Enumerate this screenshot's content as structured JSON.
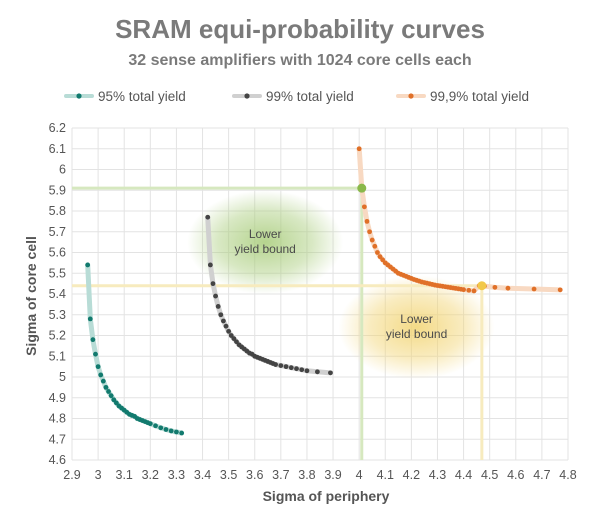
{
  "chart_data": {
    "type": "scatter",
    "title": "SRAM equi-probability curves",
    "subtitle": "32 sense amplifiers with 1024 core cells each",
    "xlabel": "Sigma of periphery",
    "ylabel": "Sigma of core cell",
    "xlim": [
      2.9,
      4.8
    ],
    "ylim": [
      4.6,
      6.2
    ],
    "x_ticks": [
      "2.9",
      "3",
      "3.1",
      "3.2",
      "3.3",
      "3.4",
      "3.5",
      "3.6",
      "3.7",
      "3.8",
      "3.9",
      "4",
      "4.1",
      "4.2",
      "4.3",
      "4.4",
      "4.5",
      "4.6",
      "4.7",
      "4.8"
    ],
    "y_ticks": [
      "4.6",
      "4.7",
      "4.8",
      "4.9",
      "5",
      "5.1",
      "5.2",
      "5.3",
      "5.4",
      "5.5",
      "5.6",
      "5.7",
      "5.8",
      "5.9",
      "6",
      "6.1",
      "6.2"
    ],
    "grid": true,
    "legend_position": "top",
    "series": [
      {
        "name": "95% total yield",
        "color": "#127a6e",
        "line_color": "#b8dcd6",
        "x": [
          2.96,
          2.97,
          2.98,
          2.99,
          3.0,
          3.01,
          3.02,
          3.03,
          3.04,
          3.05,
          3.06,
          3.07,
          3.08,
          3.09,
          3.1,
          3.11,
          3.12,
          3.13,
          3.14,
          3.15,
          3.16,
          3.17,
          3.18,
          3.19,
          3.2,
          3.22,
          3.24,
          3.26,
          3.28,
          3.3,
          3.32
        ],
        "y": [
          5.54,
          5.28,
          5.18,
          5.11,
          5.05,
          5.01,
          4.98,
          4.95,
          4.93,
          4.91,
          4.89,
          4.875,
          4.86,
          4.85,
          4.84,
          4.83,
          4.82,
          4.815,
          4.81,
          4.8,
          4.795,
          4.79,
          4.785,
          4.78,
          4.775,
          4.765,
          4.755,
          4.747,
          4.74,
          4.735,
          4.73
        ]
      },
      {
        "name": "99% total yield",
        "color": "#444444",
        "line_color": "#d0d0d0",
        "x": [
          3.42,
          3.43,
          3.44,
          3.45,
          3.46,
          3.47,
          3.48,
          3.49,
          3.5,
          3.51,
          3.52,
          3.53,
          3.54,
          3.55,
          3.56,
          3.57,
          3.58,
          3.59,
          3.6,
          3.61,
          3.62,
          3.63,
          3.64,
          3.65,
          3.66,
          3.67,
          3.68,
          3.7,
          3.72,
          3.74,
          3.76,
          3.78,
          3.8,
          3.84,
          3.89
        ],
        "y": [
          5.77,
          5.54,
          5.45,
          5.39,
          5.34,
          5.3,
          5.27,
          5.245,
          5.22,
          5.2,
          5.185,
          5.17,
          5.155,
          5.145,
          5.135,
          5.125,
          5.115,
          5.11,
          5.1,
          5.095,
          5.09,
          5.085,
          5.08,
          5.075,
          5.07,
          5.065,
          5.06,
          5.055,
          5.05,
          5.045,
          5.04,
          5.035,
          5.03,
          5.025,
          5.02
        ]
      },
      {
        "name": "99,9% total yield",
        "color": "#e07028",
        "line_color": "#f8d9c2",
        "x": [
          4.0,
          4.01,
          4.02,
          4.03,
          4.04,
          4.05,
          4.06,
          4.07,
          4.08,
          4.09,
          4.1,
          4.11,
          4.12,
          4.13,
          4.14,
          4.15,
          4.16,
          4.17,
          4.18,
          4.19,
          4.2,
          4.21,
          4.22,
          4.23,
          4.24,
          4.25,
          4.26,
          4.27,
          4.28,
          4.29,
          4.3,
          4.31,
          4.32,
          4.33,
          4.34,
          4.35,
          4.36,
          4.37,
          4.38,
          4.39,
          4.4,
          4.42,
          4.44,
          4.46,
          4.48,
          4.52,
          4.57,
          4.67,
          4.77
        ],
        "y": [
          6.1,
          5.91,
          5.82,
          5.75,
          5.7,
          5.66,
          5.63,
          5.6,
          5.58,
          5.565,
          5.55,
          5.54,
          5.53,
          5.52,
          5.51,
          5.5,
          5.495,
          5.49,
          5.485,
          5.48,
          5.475,
          5.47,
          5.466,
          5.462,
          5.458,
          5.455,
          5.452,
          5.449,
          5.446,
          5.443,
          5.441,
          5.439,
          5.437,
          5.435,
          5.433,
          5.431,
          5.429,
          5.427,
          5.425,
          5.423,
          5.421,
          5.418,
          5.415,
          5.44,
          5.438,
          5.432,
          5.428,
          5.424,
          5.42
        ]
      }
    ],
    "highlights": [
      {
        "x": 4.01,
        "y": 5.91,
        "color": "#8ab84a"
      },
      {
        "x": 4.47,
        "y": 5.44,
        "color": "#f2c84a"
      }
    ],
    "reference_lines": [
      {
        "orientation": "horizontal",
        "value": 5.91,
        "from": 2.9,
        "to": 4.01,
        "color": "#d6e8bf"
      },
      {
        "orientation": "vertical",
        "value": 4.01,
        "from": 4.6,
        "to": 5.91,
        "color": "#d6e8bf"
      },
      {
        "orientation": "horizontal",
        "value": 5.44,
        "from": 2.9,
        "to": 4.47,
        "color": "#f7ebbe"
      },
      {
        "orientation": "vertical",
        "value": 4.47,
        "from": 4.6,
        "to": 5.44,
        "color": "#f7ebbe"
      }
    ],
    "regions": [
      {
        "label_lines": [
          "Lower",
          "yield bound"
        ],
        "center_x": 3.64,
        "center_y": 5.65,
        "color": "#a8cc7a"
      },
      {
        "label_lines": [
          "Lower",
          "yield bound"
        ],
        "center_x": 4.22,
        "center_y": 5.24,
        "color": "#f2d472"
      }
    ]
  }
}
